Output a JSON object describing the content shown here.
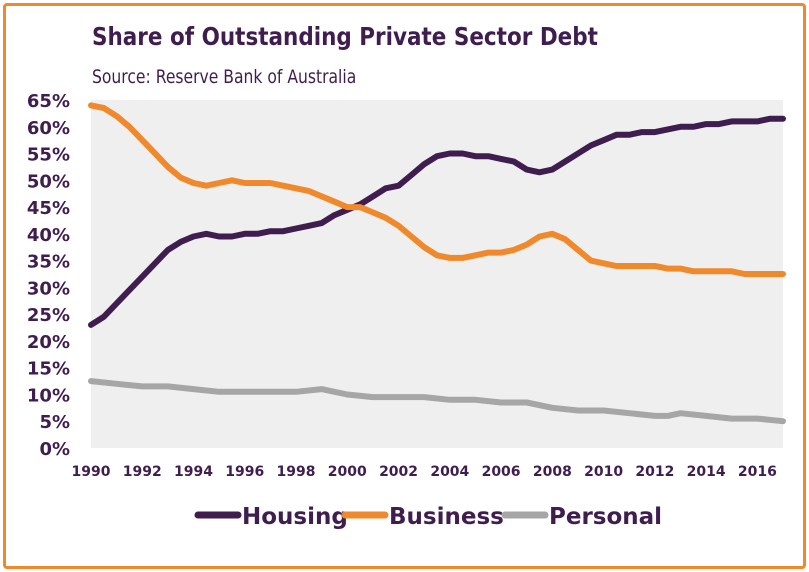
{
  "chart_data": {
    "type": "line",
    "title": "Share of Outstanding Private Sector Debt",
    "subtitle": "Source: Reserve Bank of Australia",
    "xlabel": "",
    "ylabel": "",
    "xlim": [
      1990,
      2017
    ],
    "ylim": [
      0,
      65
    ],
    "y_ticks": [
      "0%",
      "5%",
      "10%",
      "15%",
      "20%",
      "25%",
      "30%",
      "35%",
      "40%",
      "45%",
      "50%",
      "55%",
      "60%",
      "65%"
    ],
    "x_ticks": [
      "1990",
      "1992",
      "1994",
      "1996",
      "1998",
      "2000",
      "2002",
      "2004",
      "2006",
      "2008",
      "2010",
      "2012",
      "2014",
      "2016"
    ],
    "legend_position": "bottom",
    "series": [
      {
        "name": "Housing",
        "color": "#3F1D4F",
        "points": [
          [
            1990,
            23
          ],
          [
            1990.5,
            24.5
          ],
          [
            1991,
            27
          ],
          [
            1991.5,
            29.5
          ],
          [
            1992,
            32
          ],
          [
            1992.5,
            34.5
          ],
          [
            1993,
            37
          ],
          [
            1993.5,
            38.5
          ],
          [
            1994,
            39.5
          ],
          [
            1994.5,
            40
          ],
          [
            1995,
            39.5
          ],
          [
            1995.5,
            39.5
          ],
          [
            1996,
            40
          ],
          [
            1996.5,
            40
          ],
          [
            1997,
            40.5
          ],
          [
            1997.5,
            40.5
          ],
          [
            1998,
            41
          ],
          [
            1998.5,
            41.5
          ],
          [
            1999,
            42
          ],
          [
            1999.5,
            43.5
          ],
          [
            2000,
            44.5
          ],
          [
            2000.5,
            45.5
          ],
          [
            2001,
            47
          ],
          [
            2001.5,
            48.5
          ],
          [
            2002,
            49
          ],
          [
            2002.5,
            51
          ],
          [
            2003,
            53
          ],
          [
            2003.5,
            54.5
          ],
          [
            2004,
            55
          ],
          [
            2004.5,
            55
          ],
          [
            2005,
            54.5
          ],
          [
            2005.5,
            54.5
          ],
          [
            2006,
            54
          ],
          [
            2006.5,
            53.5
          ],
          [
            2007,
            52
          ],
          [
            2007.5,
            51.5
          ],
          [
            2008,
            52
          ],
          [
            2008.5,
            53.5
          ],
          [
            2009,
            55
          ],
          [
            2009.5,
            56.5
          ],
          [
            2010,
            57.5
          ],
          [
            2010.5,
            58.5
          ],
          [
            2011,
            58.5
          ],
          [
            2011.5,
            59
          ],
          [
            2012,
            59
          ],
          [
            2012.5,
            59.5
          ],
          [
            2013,
            60
          ],
          [
            2013.5,
            60
          ],
          [
            2014,
            60.5
          ],
          [
            2014.5,
            60.5
          ],
          [
            2015,
            61
          ],
          [
            2015.5,
            61
          ],
          [
            2016,
            61
          ],
          [
            2016.5,
            61.5
          ],
          [
            2017,
            61.5
          ]
        ]
      },
      {
        "name": "Business",
        "color": "#F0892B",
        "points": [
          [
            1990,
            64
          ],
          [
            1990.5,
            63.5
          ],
          [
            1991,
            62
          ],
          [
            1991.5,
            60
          ],
          [
            1992,
            57.5
          ],
          [
            1992.5,
            55
          ],
          [
            1993,
            52.5
          ],
          [
            1993.5,
            50.5
          ],
          [
            1994,
            49.5
          ],
          [
            1994.5,
            49
          ],
          [
            1995,
            49.5
          ],
          [
            1995.5,
            50
          ],
          [
            1996,
            49.5
          ],
          [
            1996.5,
            49.5
          ],
          [
            1997,
            49.5
          ],
          [
            1997.5,
            49
          ],
          [
            1998,
            48.5
          ],
          [
            1998.5,
            48
          ],
          [
            1999,
            47
          ],
          [
            1999.5,
            46
          ],
          [
            2000,
            45
          ],
          [
            2000.5,
            45
          ],
          [
            2001,
            44
          ],
          [
            2001.5,
            43
          ],
          [
            2002,
            41.5
          ],
          [
            2002.5,
            39.5
          ],
          [
            2003,
            37.5
          ],
          [
            2003.5,
            36
          ],
          [
            2004,
            35.5
          ],
          [
            2004.5,
            35.5
          ],
          [
            2005,
            36
          ],
          [
            2005.5,
            36.5
          ],
          [
            2006,
            36.5
          ],
          [
            2006.5,
            37
          ],
          [
            2007,
            38
          ],
          [
            2007.5,
            39.5
          ],
          [
            2008,
            40
          ],
          [
            2008.5,
            39
          ],
          [
            2009,
            37
          ],
          [
            2009.5,
            35
          ],
          [
            2010,
            34.5
          ],
          [
            2010.5,
            34
          ],
          [
            2011,
            34
          ],
          [
            2011.5,
            34
          ],
          [
            2012,
            34
          ],
          [
            2012.5,
            33.5
          ],
          [
            2013,
            33.5
          ],
          [
            2013.5,
            33
          ],
          [
            2014,
            33
          ],
          [
            2014.5,
            33
          ],
          [
            2015,
            33
          ],
          [
            2015.5,
            32.5
          ],
          [
            2016,
            32.5
          ],
          [
            2016.5,
            32.5
          ],
          [
            2017,
            32.5
          ]
        ]
      },
      {
        "name": "Personal",
        "color": "#A6A6A6",
        "points": [
          [
            1990,
            12.5
          ],
          [
            1991,
            12
          ],
          [
            1992,
            11.5
          ],
          [
            1993,
            11.5
          ],
          [
            1994,
            11
          ],
          [
            1995,
            10.5
          ],
          [
            1996,
            10.5
          ],
          [
            1997,
            10.5
          ],
          [
            1998,
            10.5
          ],
          [
            1999,
            11
          ],
          [
            1999.5,
            10.5
          ],
          [
            2000,
            10
          ],
          [
            2001,
            9.5
          ],
          [
            2002,
            9.5
          ],
          [
            2003,
            9.5
          ],
          [
            2004,
            9
          ],
          [
            2005,
            9
          ],
          [
            2006,
            8.5
          ],
          [
            2007,
            8.5
          ],
          [
            2008,
            7.5
          ],
          [
            2009,
            7
          ],
          [
            2010,
            7
          ],
          [
            2011,
            6.5
          ],
          [
            2012,
            6
          ],
          [
            2012.5,
            6
          ],
          [
            2013,
            6.5
          ],
          [
            2014,
            6
          ],
          [
            2015,
            5.5
          ],
          [
            2016,
            5.5
          ],
          [
            2017,
            5
          ]
        ]
      }
    ]
  }
}
